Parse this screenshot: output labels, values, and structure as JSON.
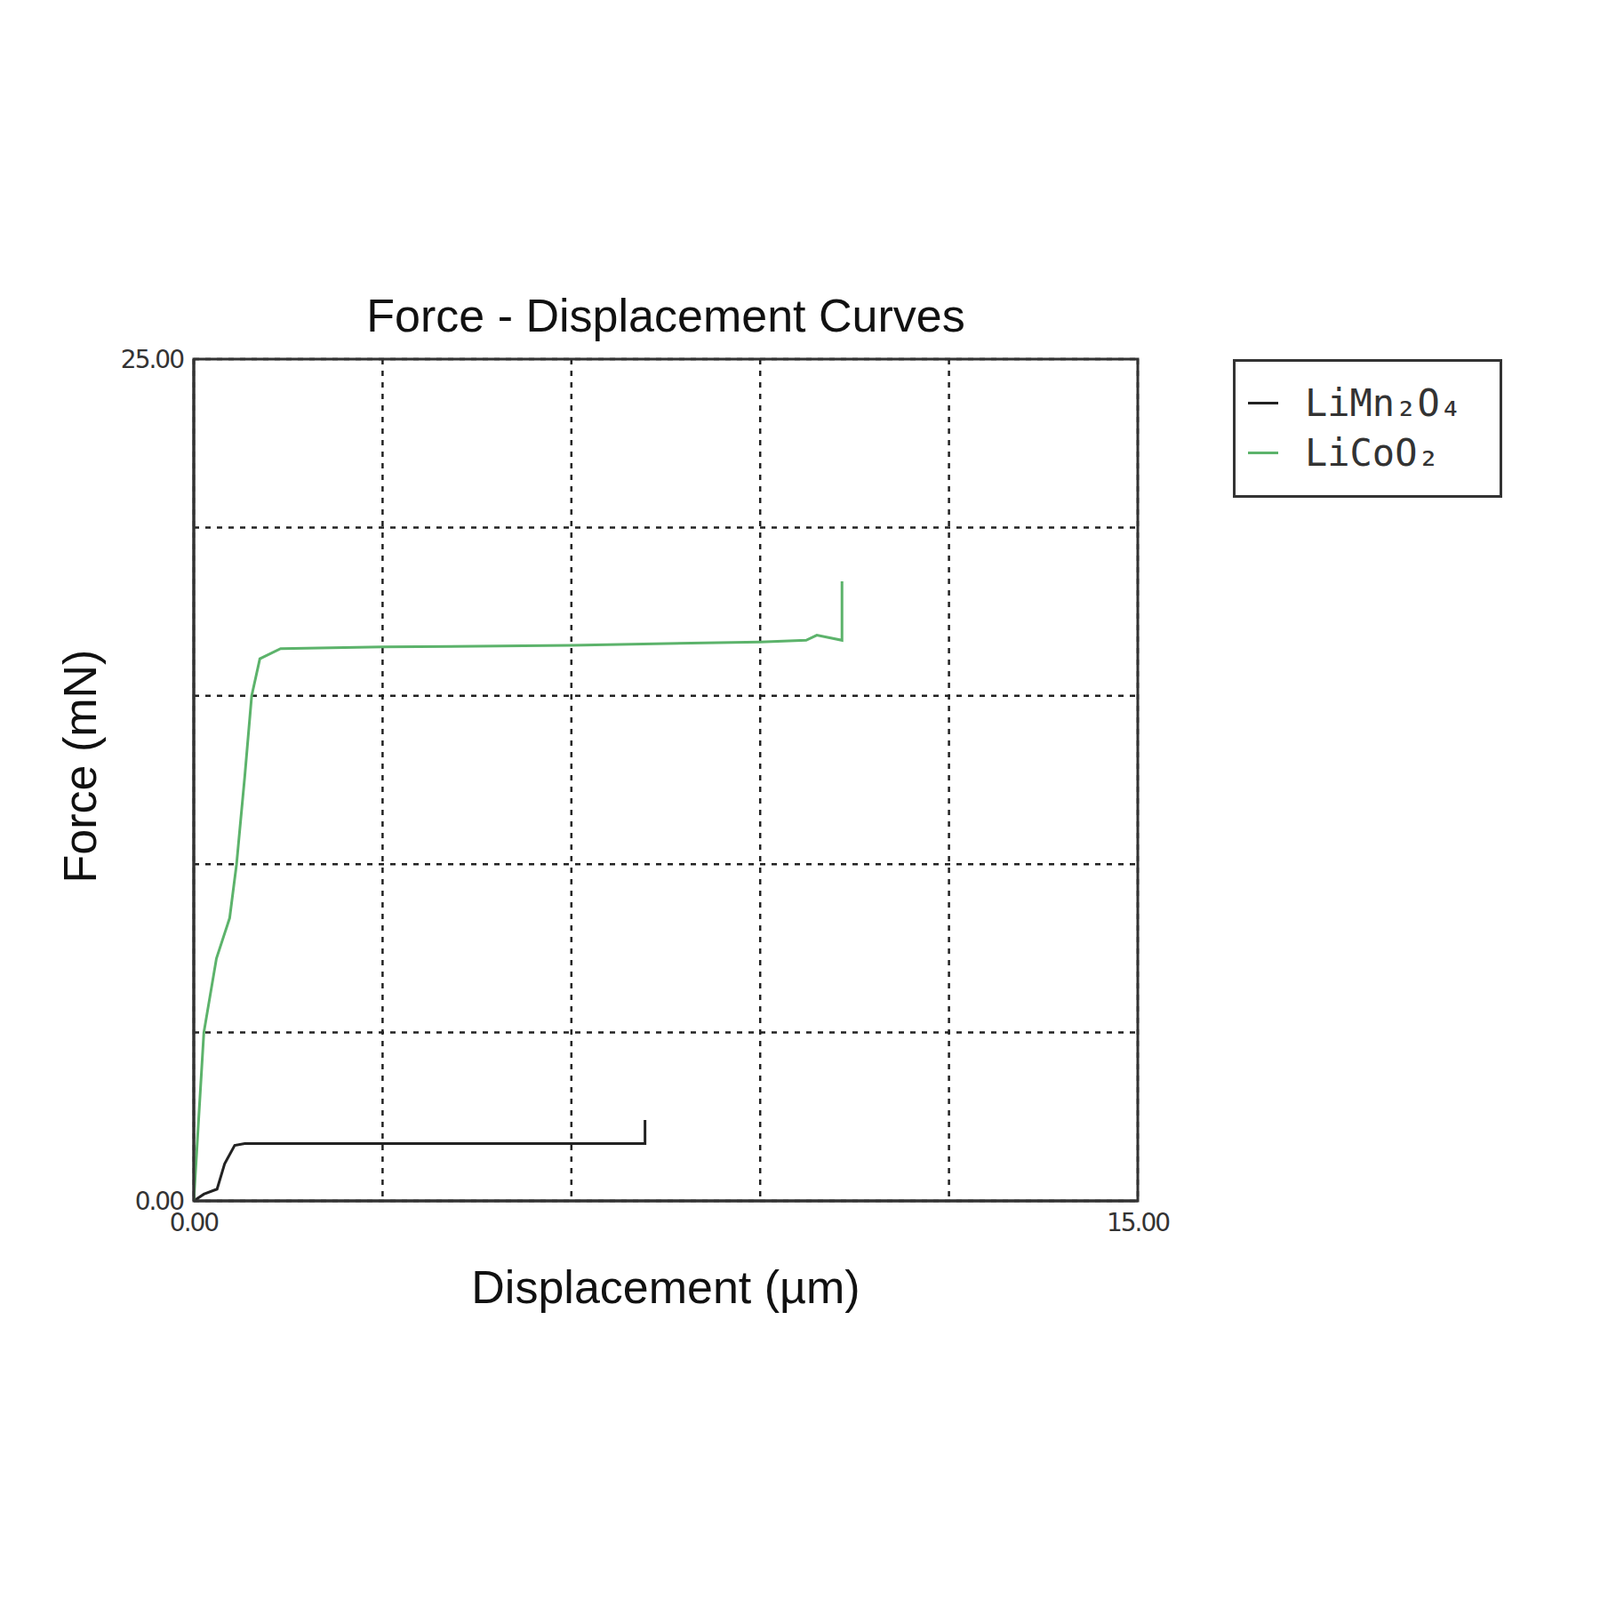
{
  "chart_data": {
    "type": "line",
    "title": "Force - Displacement Curves",
    "x_label": "Displacement (µm)",
    "y_label": "Force (mN)",
    "xlim": [
      0,
      15
    ],
    "ylim": [
      0,
      25
    ],
    "xticks": [
      {
        "value": 0,
        "label": "0.00"
      },
      {
        "value": 3,
        "label": null
      },
      {
        "value": 6,
        "label": null
      },
      {
        "value": 9,
        "label": null
      },
      {
        "value": 12,
        "label": null
      },
      {
        "value": 15,
        "label": "15.00"
      }
    ],
    "yticks": [
      {
        "value": 0,
        "label": "0.00"
      },
      {
        "value": 5,
        "label": null
      },
      {
        "value": 10,
        "label": null
      },
      {
        "value": 15,
        "label": null
      },
      {
        "value": 20,
        "label": null
      },
      {
        "value": 25,
        "label": "25.00"
      }
    ],
    "grid": true,
    "legend": "right",
    "series": [
      {
        "name": "LiMn₂O₄",
        "color": "#222222",
        "x": [
          0,
          0.16,
          0.37,
          0.49,
          0.65,
          0.81,
          3.0,
          6.0,
          7.17,
          7.17
        ],
        "values": [
          0,
          0.2,
          0.35,
          1.1,
          1.65,
          1.7,
          1.7,
          1.7,
          1.7,
          2.4
        ]
      },
      {
        "name": "LiCoO₂",
        "color": "#5cb36b",
        "x": [
          0,
          0.16,
          0.36,
          0.57,
          0.68,
          0.81,
          0.92,
          1.05,
          1.38,
          3.0,
          6.0,
          9.0,
          9.73,
          9.9,
          10.3,
          10.3
        ],
        "values": [
          0,
          5,
          7.2,
          8.4,
          10,
          12.6,
          15,
          16.1,
          16.4,
          16.45,
          16.5,
          16.6,
          16.65,
          16.8,
          16.65,
          18.4
        ]
      }
    ]
  }
}
